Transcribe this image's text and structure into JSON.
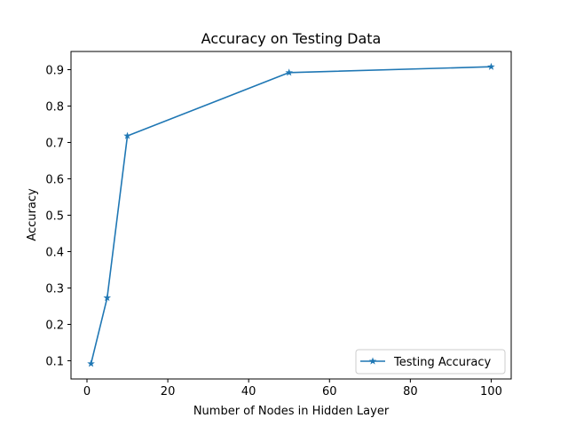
{
  "chart_data": {
    "type": "line",
    "title": "Accuracy on Testing Data",
    "xlabel": "Number of Nodes in Hidden Layer",
    "ylabel": "Accuracy",
    "xlim": [
      -3.95,
      104.95
    ],
    "ylim": [
      0.05,
      0.95
    ],
    "xticks": [
      0,
      20,
      40,
      60,
      80,
      100
    ],
    "yticks": [
      0.1,
      0.2,
      0.3,
      0.4,
      0.5,
      0.6,
      0.7,
      0.8,
      0.9
    ],
    "grid": false,
    "legend_position": "lower-right",
    "series": [
      {
        "name": "Testing Accuracy",
        "color": "#1f77b4",
        "marker": "star",
        "x": [
          1,
          5,
          10,
          50,
          100
        ],
        "y": [
          0.092,
          0.273,
          0.718,
          0.892,
          0.908
        ]
      }
    ]
  }
}
